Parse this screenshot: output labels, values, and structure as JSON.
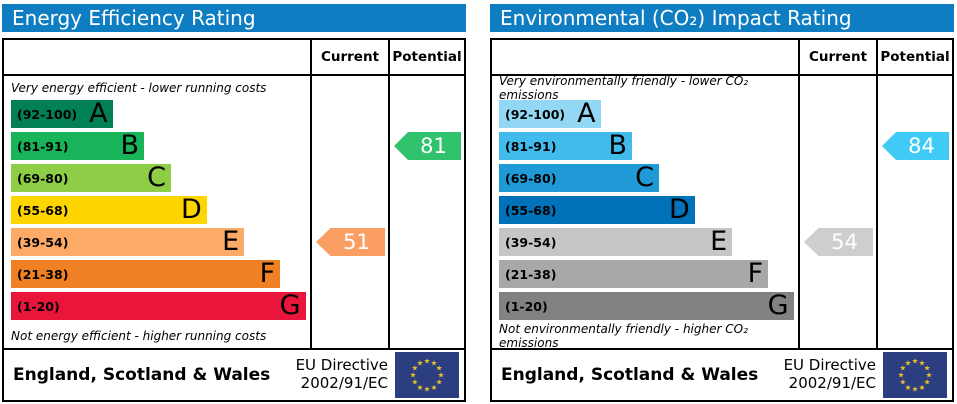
{
  "panels": [
    {
      "title": "Energy Efficiency Rating",
      "columns": {
        "current_label": "Current",
        "potential_label": "Potential"
      },
      "top_note": "Very energy efficient - lower running costs",
      "bottom_note": "Not energy efficient - higher running costs",
      "bands": [
        {
          "letter": "A",
          "range": "(92-100)",
          "color": "#008054",
          "width_pct": 34
        },
        {
          "letter": "B",
          "range": "(81-91)",
          "color": "#19b459",
          "width_pct": 44.5
        },
        {
          "letter": "C",
          "range": "(69-80)",
          "color": "#8dce46",
          "width_pct": 53.5
        },
        {
          "letter": "D",
          "range": "(55-68)",
          "color": "#ffd500",
          "width_pct": 65.5
        },
        {
          "letter": "E",
          "range": "(39-54)",
          "color": "#fcaa65",
          "width_pct": 78
        },
        {
          "letter": "F",
          "range": "(21-38)",
          "color": "#ef8023",
          "width_pct": 90
        },
        {
          "letter": "G",
          "range": "(1-20)",
          "color": "#e9153b",
          "width_pct": 98.5
        }
      ],
      "current": {
        "value": "51",
        "band_index": 4,
        "color": "#fa9e63"
      },
      "potential": {
        "value": "81",
        "band_index": 1,
        "color": "#30c26d"
      },
      "footer": {
        "region": "England, Scotland & Wales",
        "directive_line1": "EU Directive",
        "directive_line2": "2002/91/EC"
      }
    },
    {
      "title": "Environmental (CO₂) Impact Rating",
      "columns": {
        "current_label": "Current",
        "potential_label": "Potential"
      },
      "top_note": "Very environmentally friendly - lower CO₂ emissions",
      "bottom_note": "Not environmentally friendly - higher CO₂ emissions",
      "bands": [
        {
          "letter": "A",
          "range": "(92-100)",
          "color": "#92d7f4",
          "width_pct": 34
        },
        {
          "letter": "B",
          "range": "(81-91)",
          "color": "#41baec",
          "width_pct": 44.5
        },
        {
          "letter": "C",
          "range": "(69-80)",
          "color": "#1f9ad7",
          "width_pct": 53.5
        },
        {
          "letter": "D",
          "range": "(55-68)",
          "color": "#0072ba",
          "width_pct": 65.5
        },
        {
          "letter": "E",
          "range": "(39-54)",
          "color": "#c6c6c6",
          "width_pct": 78
        },
        {
          "letter": "F",
          "range": "(21-38)",
          "color": "#a8a8a8",
          "width_pct": 90
        },
        {
          "letter": "G",
          "range": "(1-20)",
          "color": "#828282",
          "width_pct": 98.5
        }
      ],
      "current": {
        "value": "54",
        "band_index": 4,
        "color": "#cecece"
      },
      "potential": {
        "value": "84",
        "band_index": 1,
        "color": "#3fcbf5"
      },
      "footer": {
        "region": "England, Scotland & Wales",
        "directive_line1": "EU Directive",
        "directive_line2": "2002/91/EC"
      }
    }
  ],
  "chart_data": [
    {
      "type": "bar",
      "title": "Energy Efficiency Rating",
      "categories": [
        "A (92-100)",
        "B (81-91)",
        "C (69-80)",
        "D (55-68)",
        "E (39-54)",
        "F (21-38)",
        "G (1-20)"
      ],
      "band_colors": [
        "#008054",
        "#19b459",
        "#8dce46",
        "#ffd500",
        "#fcaa65",
        "#ef8023",
        "#e9153b"
      ],
      "current": 51,
      "current_band": "E",
      "potential": 81,
      "potential_band": "B",
      "top_annotation": "Very energy efficient - lower running costs",
      "bottom_annotation": "Not energy efficient - higher running costs",
      "region": "England, Scotland & Wales",
      "directive": "EU Directive 2002/91/EC"
    },
    {
      "type": "bar",
      "title": "Environmental (CO₂) Impact Rating",
      "categories": [
        "A (92-100)",
        "B (81-91)",
        "C (69-80)",
        "D (55-68)",
        "E (39-54)",
        "F (21-38)",
        "G (1-20)"
      ],
      "band_colors": [
        "#92d7f4",
        "#41baec",
        "#1f9ad7",
        "#0072ba",
        "#c6c6c6",
        "#a8a8a8",
        "#828282"
      ],
      "current": 54,
      "current_band": "E",
      "potential": 84,
      "potential_band": "B",
      "top_annotation": "Very environmentally friendly - lower CO₂ emissions",
      "bottom_annotation": "Not environmentally friendly - higher CO₂ emissions",
      "region": "England, Scotland & Wales",
      "directive": "EU Directive 2002/91/EC"
    }
  ],
  "colors": {
    "header_bar": "#0f7dc2",
    "eu_flag_blue": "#2b3e80",
    "eu_flag_star": "#f0c02c"
  }
}
